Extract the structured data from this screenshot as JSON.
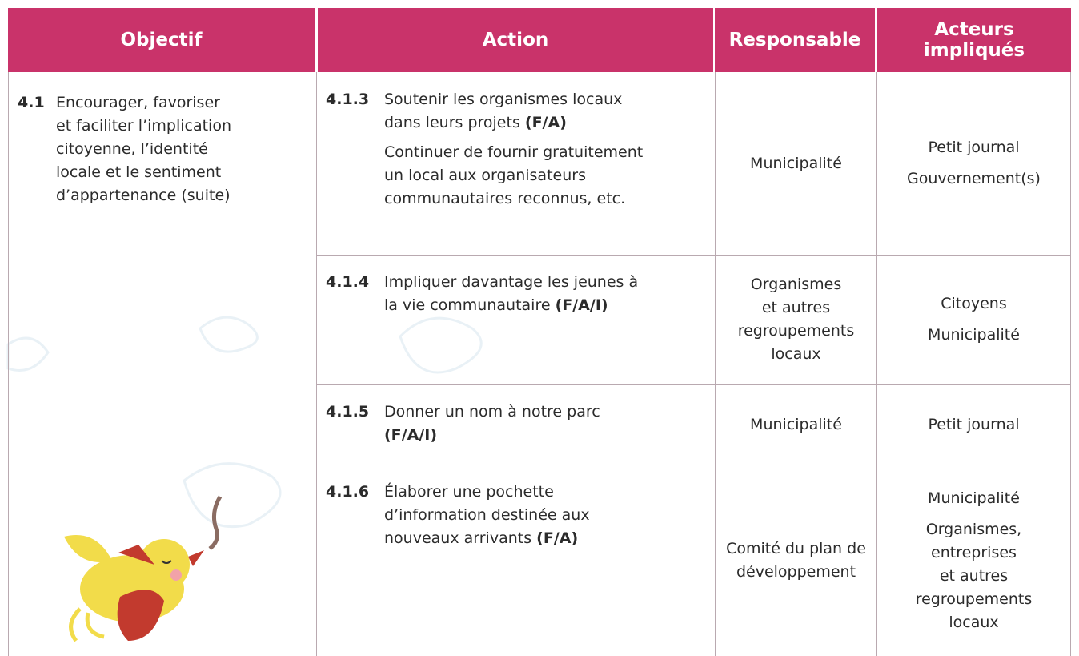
{
  "header": {
    "objectif": "Objectif",
    "action": "Action",
    "responsable": "Responsable",
    "acteurs": [
      "Acteurs",
      "impliqués"
    ]
  },
  "objective": {
    "number": "4.1",
    "lines": [
      "Encourager, favoriser",
      "et faciliter l’implication",
      "citoyenne, l’identité",
      "locale et le sentiment",
      "d’appartenance (suite)"
    ]
  },
  "rows": [
    {
      "number": "4.1.3",
      "lines": [
        "Soutenir les organismes locaux",
        "dans leurs projets"
      ],
      "tag": "(F/A)",
      "detail": [
        "Continuer de fournir gratuitement",
        "un local aux organisateurs",
        "communautaires reconnus, etc."
      ],
      "responsable": [
        "Municipalité"
      ],
      "acteurs": [
        [
          "Petit journal"
        ],
        [
          "Gouvernement(s)"
        ]
      ]
    },
    {
      "number": "4.1.4",
      "lines": [
        "Impliquer davantage les jeunes à",
        "la vie communautaire"
      ],
      "tag": "(F/A/I)",
      "responsable": [
        "Organismes",
        "et autres",
        "regroupements",
        "locaux"
      ],
      "acteurs": [
        [
          "Citoyens"
        ],
        [
          "Municipalité"
        ]
      ]
    },
    {
      "number": "4.1.5",
      "lines": [
        "Donner un nom à notre parc"
      ],
      "tag": "(F/A/I)",
      "responsable": [
        "Municipalité"
      ],
      "acteurs": [
        [
          "Petit journal"
        ]
      ]
    },
    {
      "number": "4.1.6",
      "lines": [
        "Élaborer une pochette",
        "d’information destinée aux",
        "nouveaux arrivants"
      ],
      "tag": "(F/A)",
      "responsable": [
        "Comité du plan de",
        "développement"
      ],
      "acteurs": [
        [
          "Municipalité"
        ],
        [
          "Organismes,",
          "entreprises",
          "et autres",
          "regroupements",
          "locaux"
        ]
      ]
    }
  ]
}
